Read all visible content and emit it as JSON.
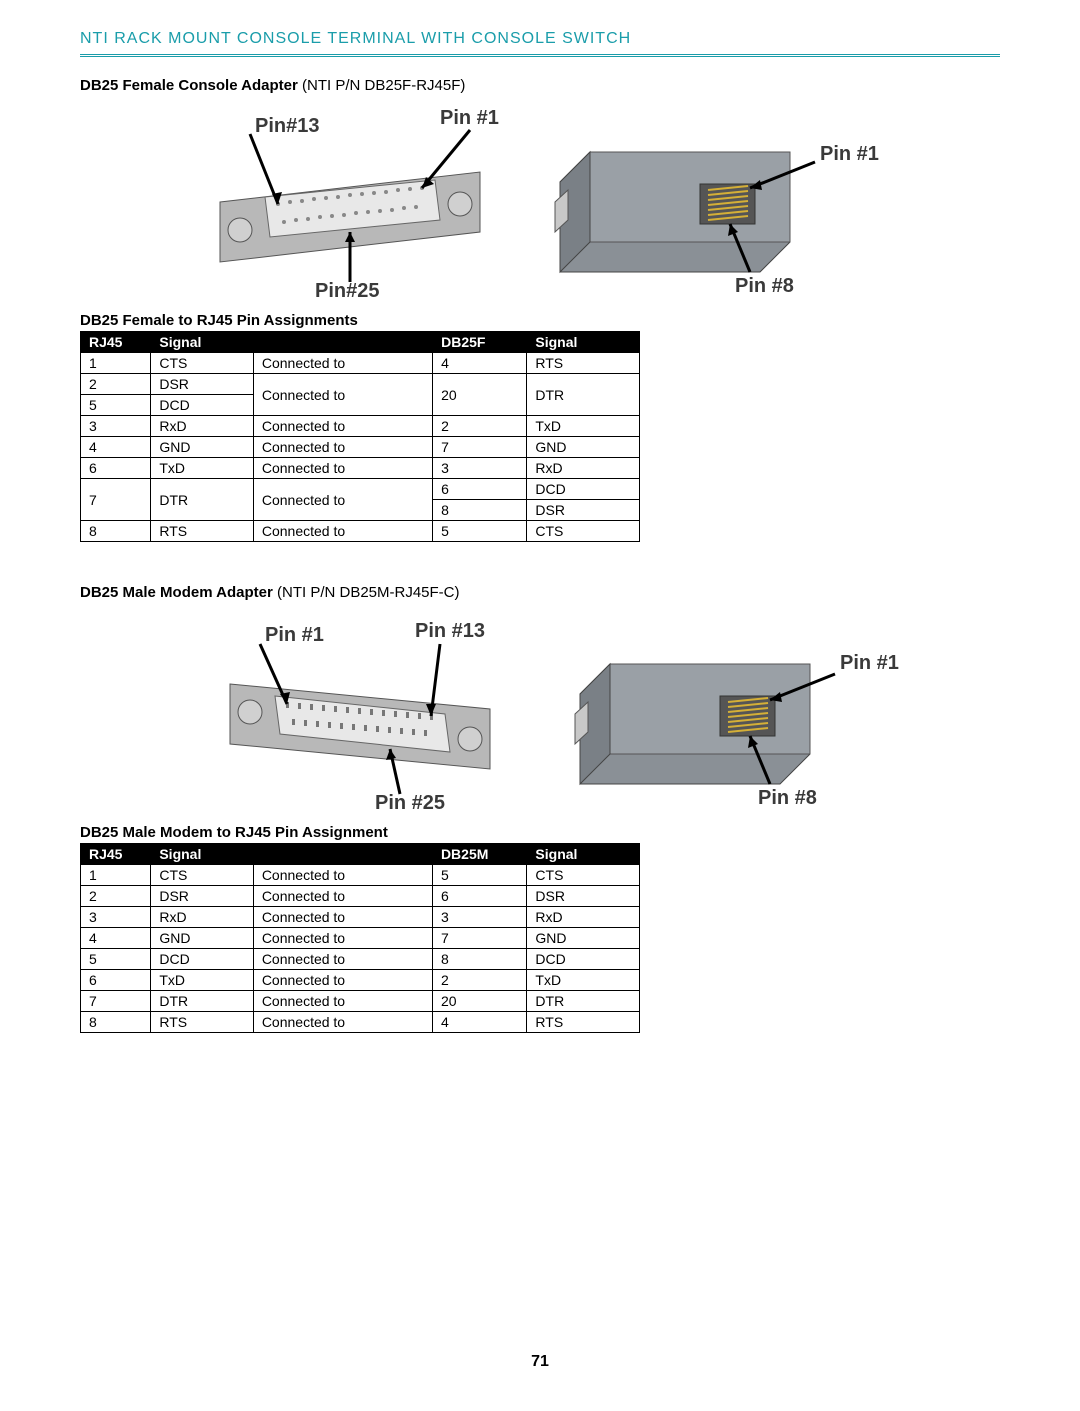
{
  "header": "NTI RACK MOUNT CONSOLE TERMINAL WITH CONSOLE SWITCH",
  "page_number": "71",
  "section1": {
    "title_bold": "DB25 Female Console Adapter",
    "title_reg": " (NTI P/N DB25F-RJ45F)",
    "fig_labels": {
      "p1": "Pin #1",
      "p13": "Pin#13",
      "p25": "Pin#25",
      "p8": "Pin #8",
      "p1b": "Pin #1"
    },
    "table_title": "DB25 Female to RJ45 Pin Assignments",
    "headers": [
      "RJ45",
      "Signal",
      "DB25F",
      "Signal"
    ],
    "rows": [
      {
        "rj45": "1",
        "sig1": "CTS",
        "conn": "Connected to",
        "db": "4",
        "sig2": "RTS",
        "span": 1
      },
      {
        "rj45": "2",
        "sig1": "DSR",
        "conn": "Connected to",
        "db": "20",
        "sig2": "DTR",
        "span": 2,
        "rj45b": "5",
        "sig1b": "DCD"
      },
      {
        "rj45": "3",
        "sig1": "RxD",
        "conn": "Connected to",
        "db": "2",
        "sig2": "TxD",
        "span": 1
      },
      {
        "rj45": "4",
        "sig1": "GND",
        "conn": "Connected to",
        "db": "7",
        "sig2": "GND",
        "span": 1
      },
      {
        "rj45": "6",
        "sig1": "TxD",
        "conn": "Connected to",
        "db": "3",
        "sig2": "RxD",
        "span": 1
      },
      {
        "rj45": "7",
        "sig1": "DTR",
        "conn": "Connected to",
        "db": "6",
        "sig2": "DCD",
        "span": 2,
        "dbb": "8",
        "sig2b": "DSR"
      },
      {
        "rj45": "8",
        "sig1": "RTS",
        "conn": "Connected to",
        "db": "5",
        "sig2": "CTS",
        "span": 1
      }
    ]
  },
  "section2": {
    "title_bold": "DB25 Male Modem Adapter",
    "title_reg": " (NTI P/N DB25M-RJ45F-C)",
    "fig_labels": {
      "p1": "Pin #1",
      "p13": "Pin #13",
      "p25": "Pin #25",
      "p1b": "Pin #1",
      "p8": "Pin #8"
    },
    "table_title": "DB25 Male Modem to RJ45 Pin Assignment",
    "headers": [
      "RJ45",
      "Signal",
      "DB25M",
      "Signal"
    ],
    "rows": [
      {
        "rj45": "1",
        "sig1": "CTS",
        "conn": "Connected to",
        "db": "5",
        "sig2": "CTS"
      },
      {
        "rj45": "2",
        "sig1": "DSR",
        "conn": "Connected to",
        "db": "6",
        "sig2": "DSR"
      },
      {
        "rj45": "3",
        "sig1": "RxD",
        "conn": "Connected to",
        "db": "3",
        "sig2": "RxD"
      },
      {
        "rj45": "4",
        "sig1": "GND",
        "conn": "Connected to",
        "db": "7",
        "sig2": "GND"
      },
      {
        "rj45": "5",
        "sig1": "DCD",
        "conn": "Connected to",
        "db": "8",
        "sig2": "DCD"
      },
      {
        "rj45": "6",
        "sig1": "TxD",
        "conn": "Connected to",
        "db": "2",
        "sig2": "TxD"
      },
      {
        "rj45": "7",
        "sig1": "DTR",
        "conn": "Connected to",
        "db": "20",
        "sig2": "DTR"
      },
      {
        "rj45": "8",
        "sig1": "RTS",
        "conn": "Connected to",
        "db": "4",
        "sig2": "RTS"
      }
    ]
  }
}
